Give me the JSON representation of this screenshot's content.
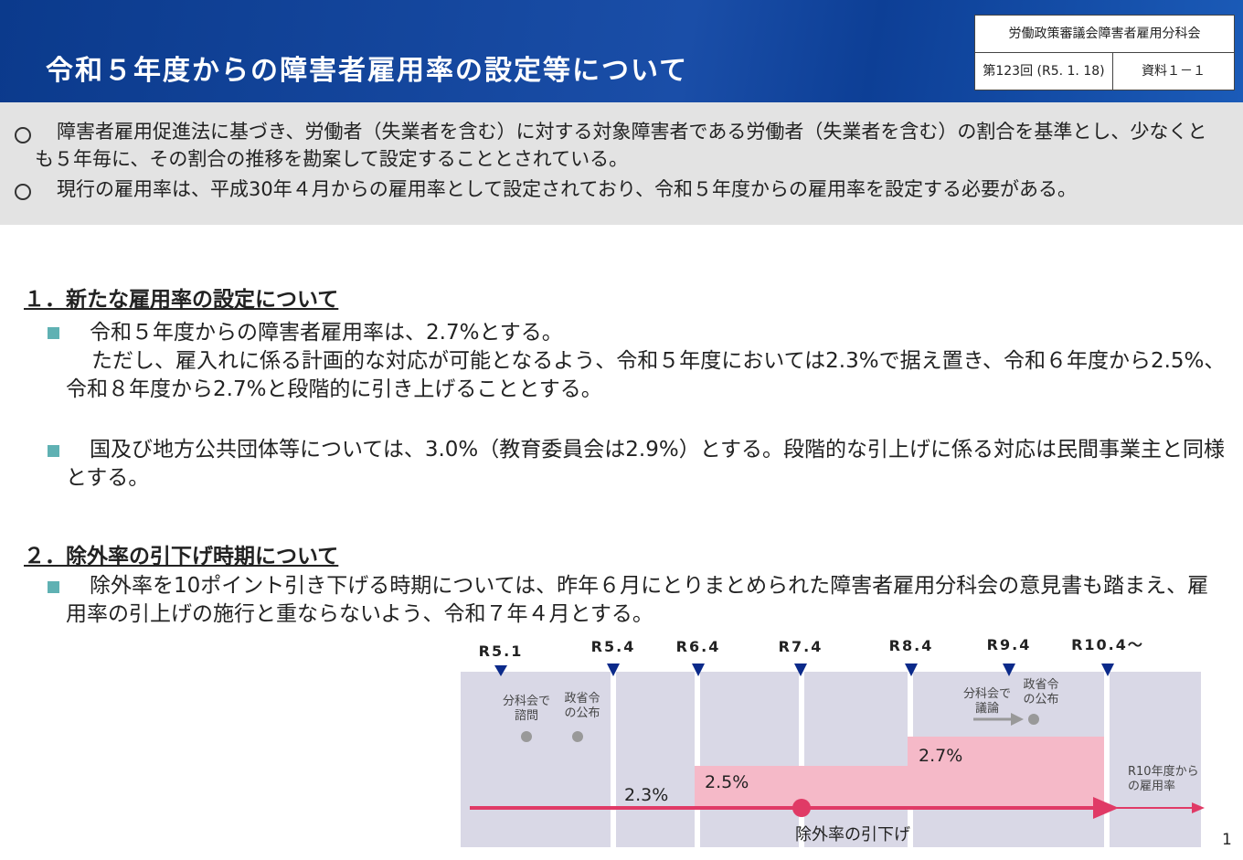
{
  "header": {
    "title": "令和５年度からの障害者雇用率の設定等について",
    "meeting": "労働政策審議会障害者雇用分科会",
    "session": "第123回 (R5. 1. 18)",
    "doc_id": "資料１－１"
  },
  "summary": {
    "items": [
      "障害者雇用促進法に基づき、労働者（失業者を含む）に対する対象障害者である労働者（失業者を含む）の割合を基準とし、少なくとも５年毎に、その割合の推移を勘案して設定することとされている。",
      "現行の雇用率は、平成30年４月からの雇用率として設定されており、令和５年度からの雇用率を設定する必要がある。"
    ]
  },
  "sections": [
    {
      "heading": "１．新たな雇用率の設定について",
      "items": [
        [
          "令和５年度からの障害者雇用率は、2.7%とする。",
          "ただし、雇入れに係る計画的な対応が可能となるよう、令和５年度においては2.3%で据え置き、令和６年度から2.5%、令和８年度から2.7%と段階的に引き上げることとする。"
        ],
        [
          "国及び地方公共団体等については、3.0%（教育委員会は2.9%）とする。段階的な引上げに係る対応は民間事業主と同様とする。"
        ]
      ]
    },
    {
      "heading": "２．除外率の引下げ時期について",
      "items": [
        [
          "除外率を10ポイント引き下げる時期については、昨年６月にとりまとめられた障害者雇用分科会の意見書も踏まえ、雇用率の引上げの施行と重ならないよう、令和７年４月とする。"
        ]
      ]
    }
  ],
  "timeline": {
    "points": [
      "R5.1",
      "R5.4",
      "R6.4",
      "R7.4",
      "R8.4",
      "R9.4",
      "R10.4～"
    ],
    "events": [
      [
        "分科会で",
        "諮問"
      ],
      [
        "政省令",
        "の公布"
      ],
      [
        "分科会で",
        "議論"
      ],
      [
        "政省令",
        "の公布"
      ]
    ],
    "rates": [
      "2.3%",
      "2.5%",
      "2.7%"
    ],
    "next_rate": [
      "R10年度から",
      "の雇用率"
    ],
    "exclusion": "除外率の引下げ"
  },
  "page_number": "1"
}
